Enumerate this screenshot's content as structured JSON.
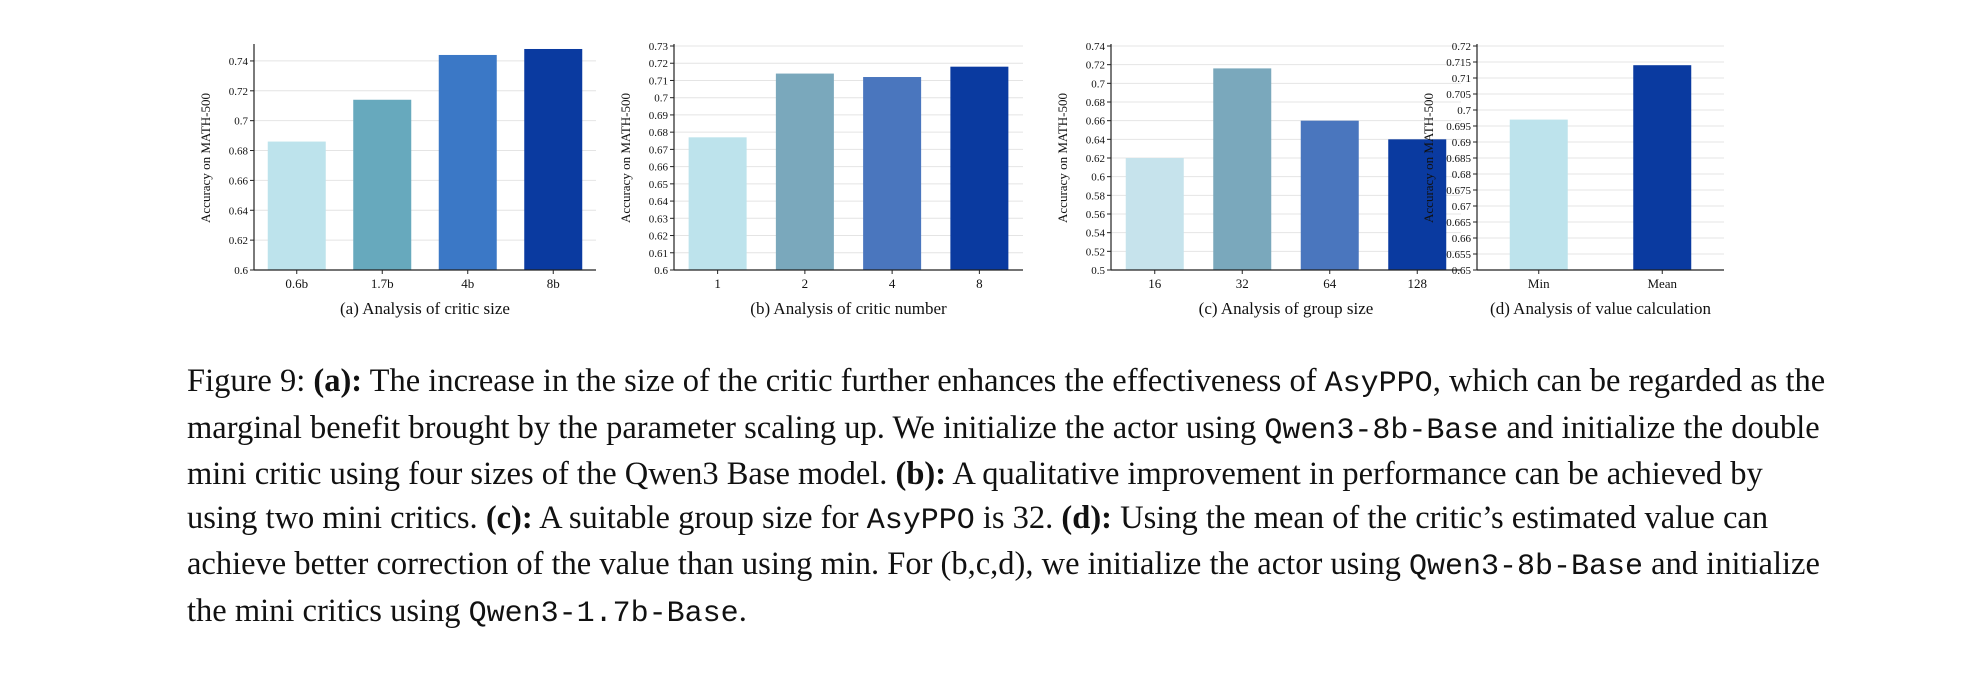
{
  "chart_data": [
    {
      "type": "bar",
      "caption": "(a) Analysis of critic size",
      "ylabel": "Accuracy on MATH-500",
      "categories": [
        "0.6b",
        "1.7b",
        "4b",
        "8b"
      ],
      "values": [
        0.686,
        0.714,
        0.744,
        0.748
      ],
      "ylim": [
        0.6,
        0.75
      ],
      "yticks": [
        0.6,
        0.62,
        0.64,
        0.66,
        0.68,
        0.7,
        0.72,
        0.74
      ],
      "ytick_labels": [
        "0.6",
        "0.62",
        "0.64",
        "0.66",
        "0.68",
        "0.7",
        "0.72",
        "0.74"
      ],
      "colors": [
        "#bde3ec",
        "#67a9bd",
        "#3b78c6",
        "#0a3aa0"
      ],
      "grid": true
    },
    {
      "type": "bar",
      "caption": "(b) Analysis of critic number",
      "ylabel": "Accuracy on MATH-500",
      "categories": [
        "1",
        "2",
        "4",
        "8"
      ],
      "values": [
        0.677,
        0.714,
        0.712,
        0.718
      ],
      "ylim": [
        0.6,
        0.73
      ],
      "yticks": [
        0.6,
        0.61,
        0.62,
        0.63,
        0.64,
        0.65,
        0.66,
        0.67,
        0.68,
        0.69,
        0.7,
        0.71,
        0.72,
        0.73
      ],
      "ytick_labels": [
        "0.6",
        "0.61",
        "0.62",
        "0.63",
        "0.64",
        "0.65",
        "0.66",
        "0.67",
        "0.68",
        "0.69",
        "0.7",
        "0.71",
        "0.72",
        "0.73"
      ],
      "colors": [
        "#bde3ec",
        "#7aa8bc",
        "#4a76be",
        "#0a3aa0"
      ],
      "grid": true
    },
    {
      "type": "bar",
      "caption": "(c) Analysis of group size",
      "ylabel": "Accuracy on MATH-500",
      "categories": [
        "16",
        "32",
        "64",
        "128"
      ],
      "values": [
        0.62,
        0.716,
        0.66,
        0.64
      ],
      "ylim": [
        0.5,
        0.74
      ],
      "yticks": [
        0.5,
        0.52,
        0.54,
        0.56,
        0.58,
        0.6,
        0.62,
        0.64,
        0.66,
        0.68,
        0.7,
        0.72,
        0.74
      ],
      "ytick_labels": [
        "0.5",
        "0.52",
        "0.54",
        "0.56",
        "0.58",
        "0.6",
        "0.62",
        "0.64",
        "0.66",
        "0.68",
        "0.7",
        "0.72",
        "0.74"
      ],
      "colors": [
        "#c6e3ec",
        "#7aa8bc",
        "#4a76be",
        "#0a3aa0"
      ],
      "grid": true
    },
    {
      "type": "bar",
      "caption": "(d) Analysis of value calculation",
      "ylabel": "Accuracy on MATH-500",
      "categories": [
        "Min",
        "Mean"
      ],
      "values": [
        0.697,
        0.714
      ],
      "ylim": [
        0.65,
        0.72
      ],
      "yticks": [
        0.65,
        0.655,
        0.66,
        0.665,
        0.67,
        0.675,
        0.68,
        0.685,
        0.69,
        0.695,
        0.7,
        0.705,
        0.71,
        0.715,
        0.72
      ],
      "ytick_labels": [
        "0.65",
        "0.655",
        "0.66",
        "0.665",
        "0.67",
        "0.675",
        "0.68",
        "0.685",
        "0.69",
        "0.695",
        "0.7",
        "0.705",
        "0.71",
        "0.715",
        "0.72"
      ],
      "colors": [
        "#bde3ec",
        "#0a3aa0"
      ],
      "grid": true
    }
  ],
  "caption": {
    "label": "Figure 9:",
    "a_tag": "(a):",
    "a_text_1": "The increase in the size of the critic further enhances the effectiveness of",
    "a_code_1": "AsyPPO",
    "a_text_2": ", which can be regarded as the marginal benefit brought by the parameter scaling up. We initialize the actor using",
    "a_code_2": "Qwen3-8b-Base",
    "a_text_3": "and initialize the double mini critic using four sizes of the Qwen3 Base model.",
    "b_tag": "(b):",
    "b_text": "A qualitative improvement in performance can be achieved by using two mini critics.",
    "c_tag": "(c):",
    "c_text": "A suitable group size for",
    "c_code": "AsyPPO",
    "c_text_2": "is 32.",
    "d_tag": "(d):",
    "d_text_1": "Using the mean of the critic’s estimated value can achieve better correction of the value than using min. For (b,c,d), we initialize the actor using",
    "d_code_1": "Qwen3-8b-Base",
    "d_text_2": "and initialize the mini critics using",
    "d_code_2": "Qwen3-1.7b-Base",
    "d_text_3": "."
  }
}
